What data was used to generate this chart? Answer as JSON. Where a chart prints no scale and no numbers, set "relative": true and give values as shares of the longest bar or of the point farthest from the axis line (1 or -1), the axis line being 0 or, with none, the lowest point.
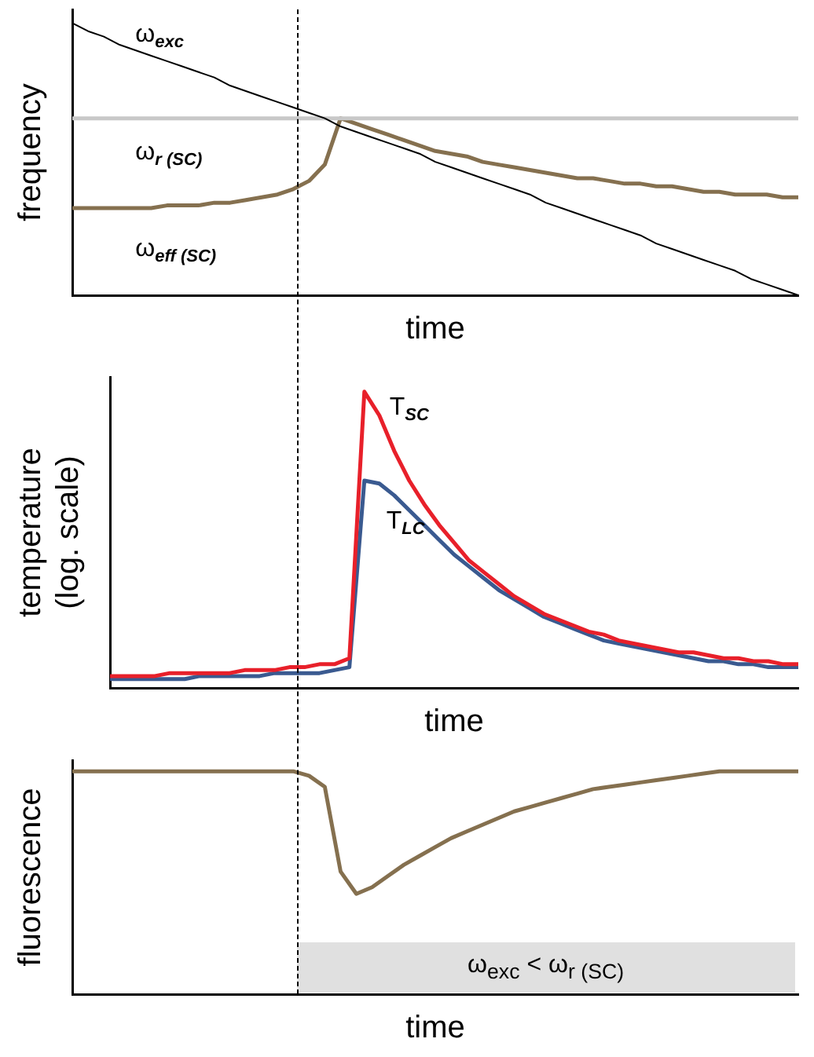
{
  "chart_data": [
    {
      "type": "line",
      "relative": true,
      "xlabel": "time",
      "ylabel": "frequency",
      "legend": false,
      "categories": [
        null,
        null,
        null,
        null,
        null,
        null,
        null,
        null,
        null,
        null,
        null,
        null,
        null,
        null,
        null,
        null,
        null,
        null,
        null,
        null,
        null,
        null,
        null,
        null,
        null,
        null,
        null,
        null,
        null,
        null,
        null,
        null,
        null,
        null,
        null,
        null,
        null,
        null,
        null,
        null,
        null,
        null,
        null,
        null,
        null,
        null,
        null
      ],
      "series": [
        {
          "name": "ω$_{exc}$",
          "color": "#000000",
          "values": [
            1,
            0.97,
            0.95,
            0.92,
            0.9,
            0.88,
            0.86,
            0.84,
            0.82,
            0.8,
            0.77,
            0.75,
            0.73,
            0.71,
            0.69,
            0.67,
            0.65,
            0.62,
            0.6,
            0.58,
            0.56,
            0.54,
            0.52,
            0.49,
            0.47,
            0.45,
            0.43,
            0.41,
            0.39,
            0.37,
            0.34,
            0.32,
            0.3,
            0.28,
            0.26,
            0.24,
            0.22,
            0.19,
            0.17,
            0.15,
            0.13,
            0.11,
            0.09,
            0.06,
            0.04,
            0.02,
            0
          ]
        },
        {
          "name": "ω$_{r (SC)}$",
          "color": "#c8c8c8",
          "values": [
            0.65,
            0.65,
            0.65,
            0.65,
            0.65,
            0.65,
            0.65,
            0.65,
            0.65,
            0.65,
            0.65,
            0.65,
            0.65,
            0.65,
            0.65,
            0.65,
            0.65,
            0.65,
            0.65,
            0.65,
            0.65,
            0.65,
            0.65,
            0.65,
            0.65,
            0.65,
            0.65,
            0.65,
            0.65,
            0.65,
            0.65,
            0.65,
            0.65,
            0.65,
            0.65,
            0.65,
            0.65,
            0.65,
            0.65,
            0.65,
            0.65,
            0.65,
            0.65,
            0.65,
            0.65,
            0.65,
            0.65
          ]
        },
        {
          "name": "ω$_{eff (SC)}$",
          "color": "#85704f",
          "values": [
            0.32,
            0.32,
            0.32,
            0.32,
            0.32,
            0.32,
            0.33,
            0.33,
            0.33,
            0.34,
            0.34,
            0.35,
            0.36,
            0.37,
            0.39,
            0.42,
            0.48,
            0.65,
            0.63,
            0.61,
            0.59,
            0.57,
            0.55,
            0.53,
            0.52,
            0.51,
            0.49,
            0.48,
            0.47,
            0.46,
            0.45,
            0.44,
            0.43,
            0.43,
            0.42,
            0.41,
            0.41,
            0.4,
            0.4,
            0.39,
            0.38,
            0.38,
            0.37,
            0.37,
            0.37,
            0.36,
            0.36
          ]
        }
      ]
    },
    {
      "type": "line",
      "relative": true,
      "xlabel": "time",
      "ylabel": "temperature (log. scale)",
      "legend": false,
      "categories": [
        null,
        null,
        null,
        null,
        null,
        null,
        null,
        null,
        null,
        null,
        null,
        null,
        null,
        null,
        null,
        null,
        null,
        null,
        null,
        null,
        null,
        null,
        null,
        null,
        null,
        null,
        null,
        null,
        null,
        null,
        null,
        null,
        null,
        null,
        null,
        null,
        null,
        null,
        null,
        null,
        null,
        null,
        null,
        null,
        null,
        null,
        null
      ],
      "series": [
        {
          "name": "T$_{SC}$",
          "color": "#e8202a",
          "values": [
            0.04,
            0.04,
            0.04,
            0.04,
            0.05,
            0.05,
            0.05,
            0.05,
            0.05,
            0.06,
            0.06,
            0.06,
            0.07,
            0.07,
            0.08,
            0.08,
            0.1,
            1.0,
            0.92,
            0.8,
            0.7,
            0.62,
            0.55,
            0.49,
            0.43,
            0.39,
            0.35,
            0.31,
            0.28,
            0.25,
            0.23,
            0.21,
            0.19,
            0.18,
            0.16,
            0.15,
            0.14,
            0.13,
            0.12,
            0.12,
            0.11,
            0.1,
            0.1,
            0.09,
            0.09,
            0.08,
            0.08
          ]
        },
        {
          "name": "T$_{LC}$",
          "color": "#3a5a90",
          "values": [
            0.03,
            0.03,
            0.03,
            0.03,
            0.03,
            0.03,
            0.04,
            0.04,
            0.04,
            0.04,
            0.04,
            0.05,
            0.05,
            0.05,
            0.05,
            0.06,
            0.07,
            0.7,
            0.69,
            0.65,
            0.6,
            0.55,
            0.5,
            0.45,
            0.41,
            0.37,
            0.33,
            0.3,
            0.27,
            0.24,
            0.22,
            0.2,
            0.18,
            0.16,
            0.15,
            0.14,
            0.13,
            0.12,
            0.11,
            0.1,
            0.09,
            0.09,
            0.08,
            0.08,
            0.07,
            0.07,
            0.07
          ]
        }
      ]
    },
    {
      "type": "line",
      "relative": true,
      "xlabel": "time",
      "ylabel": "fluorescence",
      "legend": false,
      "annotations": [
        "ω$_{exc}$ < ω$_{r (SC)}$"
      ],
      "categories": [
        null,
        null,
        null,
        null,
        null,
        null,
        null,
        null,
        null,
        null,
        null,
        null,
        null,
        null,
        null,
        null,
        null,
        null,
        null,
        null,
        null,
        null,
        null,
        null,
        null,
        null,
        null,
        null,
        null,
        null,
        null,
        null,
        null,
        null,
        null,
        null,
        null,
        null,
        null,
        null,
        null,
        null,
        null,
        null,
        null,
        null,
        null
      ],
      "series": [
        {
          "color": "#85704f",
          "values": [
            1,
            1,
            1,
            1,
            1,
            1,
            1,
            1,
            1,
            1,
            1,
            1,
            1,
            1,
            1,
            0.98,
            0.93,
            0.55,
            0.45,
            0.48,
            0.53,
            0.58,
            0.62,
            0.66,
            0.7,
            0.73,
            0.76,
            0.79,
            0.82,
            0.84,
            0.86,
            0.88,
            0.9,
            0.92,
            0.93,
            0.94,
            0.95,
            0.96,
            0.97,
            0.98,
            0.99,
            1,
            1,
            1,
            1,
            1,
            1
          ]
        }
      ]
    }
  ]
}
